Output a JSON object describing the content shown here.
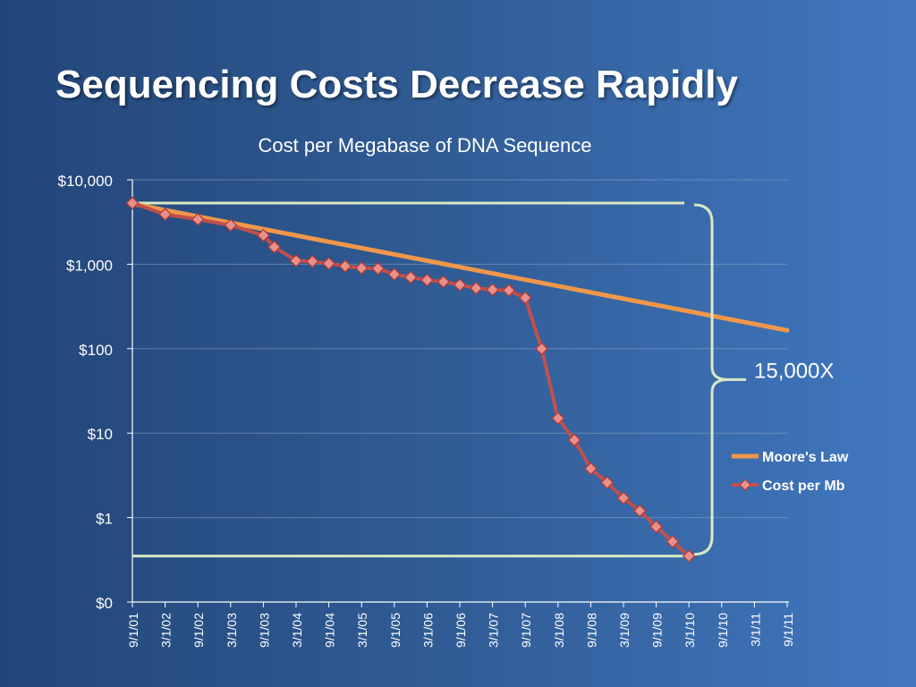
{
  "slide": {
    "title": "Sequencing Costs Decrease Rapidly"
  },
  "chart_data": {
    "type": "line",
    "title": "Cost per Megabase of DNA Sequence",
    "y_scale": "log",
    "ylim": [
      0.1,
      10000
    ],
    "y_ticks": [
      {
        "value": 10000,
        "label": "$10,000"
      },
      {
        "value": 1000,
        "label": "$1,000"
      },
      {
        "value": 100,
        "label": "$100"
      },
      {
        "value": 10,
        "label": "$10"
      },
      {
        "value": 1,
        "label": "$1"
      },
      {
        "value": 0.1,
        "label": "$0"
      }
    ],
    "categories": [
      "9/1/01",
      "3/1/02",
      "9/1/02",
      "3/1/03",
      "9/1/03",
      "3/1/04",
      "9/1/04",
      "3/1/05",
      "9/1/05",
      "3/1/06",
      "9/1/06",
      "3/1/07",
      "9/1/07",
      "3/1/08",
      "9/1/08",
      "3/1/09",
      "9/1/09",
      "3/1/10",
      "9/1/10",
      "3/1/11",
      "9/1/11"
    ],
    "grid": true,
    "legend_position": "right",
    "series": [
      {
        "name": "Moore's Law",
        "color": "#f0974a",
        "points": [
          {
            "x": "9/1/01",
            "y": 5200
          },
          {
            "x": "9/1/11",
            "y": 165
          }
        ]
      },
      {
        "name": "Cost per Mb",
        "color": "#c0504d",
        "marker": "diamond",
        "points": [
          {
            "x": "9/1/01",
            "y": 5300
          },
          {
            "x": "3/1/02",
            "y": 3900
          },
          {
            "x": "9/1/02",
            "y": 3400
          },
          {
            "x": "3/1/03",
            "y": 2900
          },
          {
            "x": "9/1/03",
            "y": 2200
          },
          {
            "x": "11/1/03",
            "y": 1600
          },
          {
            "x": "3/1/04",
            "y": 1100
          },
          {
            "x": "6/1/04",
            "y": 1080
          },
          {
            "x": "9/1/04",
            "y": 1020
          },
          {
            "x": "12/1/04",
            "y": 950
          },
          {
            "x": "3/1/05",
            "y": 900
          },
          {
            "x": "6/1/05",
            "y": 890
          },
          {
            "x": "9/1/05",
            "y": 760
          },
          {
            "x": "12/1/05",
            "y": 700
          },
          {
            "x": "3/1/06",
            "y": 650
          },
          {
            "x": "6/1/06",
            "y": 620
          },
          {
            "x": "9/1/06",
            "y": 570
          },
          {
            "x": "12/1/06",
            "y": 520
          },
          {
            "x": "3/1/07",
            "y": 500
          },
          {
            "x": "6/1/07",
            "y": 490
          },
          {
            "x": "9/1/07",
            "y": 400
          },
          {
            "x": "12/1/07",
            "y": 100
          },
          {
            "x": "3/1/08",
            "y": 15
          },
          {
            "x": "6/1/08",
            "y": 8.3
          },
          {
            "x": "9/1/08",
            "y": 3.8
          },
          {
            "x": "12/1/08",
            "y": 2.6
          },
          {
            "x": "3/1/09",
            "y": 1.7
          },
          {
            "x": "6/1/09",
            "y": 1.2
          },
          {
            "x": "9/1/09",
            "y": 0.78
          },
          {
            "x": "12/1/09",
            "y": 0.52
          },
          {
            "x": "3/1/10",
            "y": 0.35
          }
        ]
      }
    ],
    "annotation": {
      "label": "15,000X",
      "from": 5300,
      "to": 0.35
    }
  }
}
